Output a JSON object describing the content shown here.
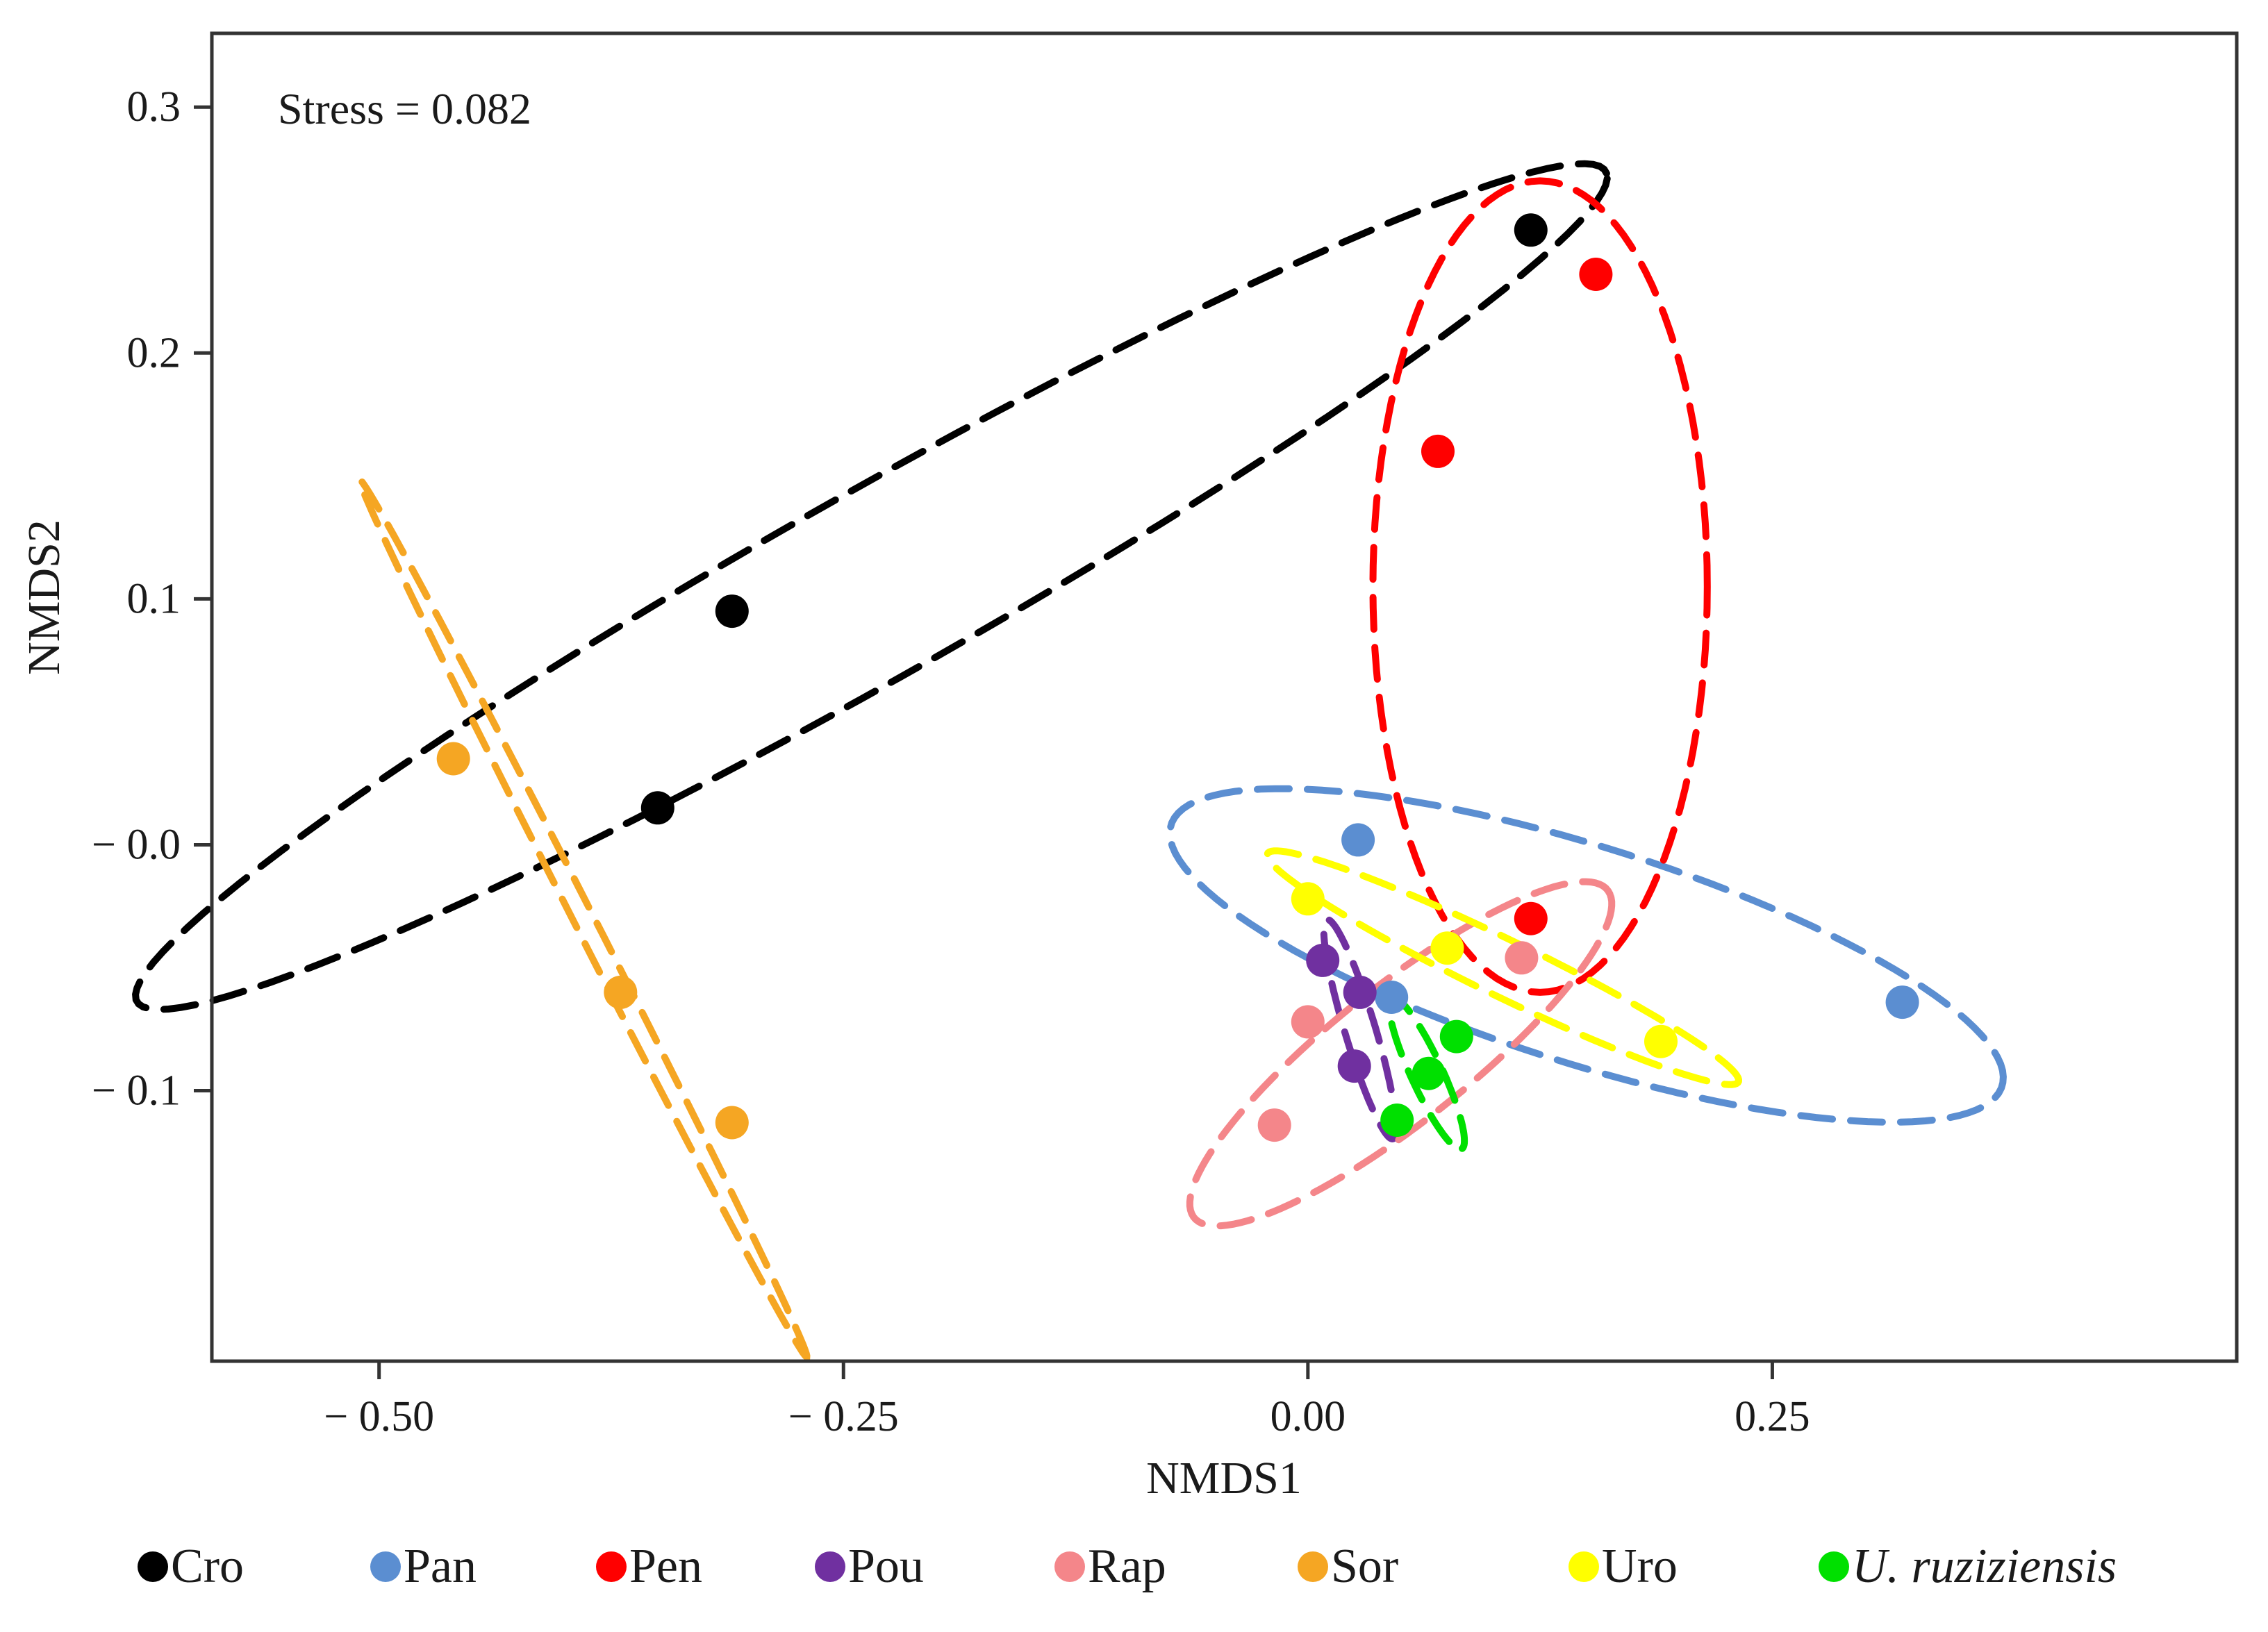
{
  "chart_data": {
    "type": "scatter",
    "title": "",
    "annotation": "Stress = 0.082",
    "xlabel": "NMDS1",
    "ylabel": "NMDS2",
    "xlim": [
      -0.59,
      0.5
    ],
    "ylim": [
      -0.21,
      0.33
    ],
    "x_ticks": [
      -0.5,
      -0.25,
      0.0,
      0.25
    ],
    "x_tick_labels": [
      "− 0.50",
      "− 0.25",
      "0.00",
      "0.25"
    ],
    "y_ticks": [
      0.3,
      0.2,
      0.1,
      0.0,
      -0.1
    ],
    "y_tick_labels": [
      "0.3",
      "0.2",
      "0.1",
      "− 0.0",
      "− 0.1"
    ],
    "grid": false,
    "legend_position": "bottom",
    "series": [
      {
        "name": "Cro",
        "italic": false,
        "color": "#000000",
        "points": [
          [
            0.12,
            0.25
          ],
          [
            -0.31,
            0.095
          ],
          [
            -0.35,
            0.015
          ]
        ],
        "ellipse": {
          "cx": -0.235,
          "cy": 0.105,
          "rx": 0.43,
          "ry": 0.04,
          "angle_deg": 23
        }
      },
      {
        "name": "Pan",
        "italic": false,
        "color": "#5b8ed1",
        "points": [
          [
            0.027,
            0.002
          ],
          [
            0.045,
            -0.062
          ],
          [
            0.32,
            -0.064
          ]
        ],
        "ellipse": {
          "cx": 0.15,
          "cy": -0.045,
          "rx": 0.23,
          "ry": 0.045,
          "angle_deg": -13
        }
      },
      {
        "name": "Pen",
        "italic": false,
        "color": "#ff0000",
        "points": [
          [
            0.155,
            0.232
          ],
          [
            0.07,
            0.16
          ],
          [
            0.12,
            -0.03
          ]
        ],
        "ellipse": {
          "cx": 0.125,
          "cy": 0.105,
          "rx": 0.09,
          "ry": 0.165,
          "angle_deg": 0
        }
      },
      {
        "name": "Pou",
        "italic": false,
        "color": "#7030a0",
        "points": [
          [
            0.008,
            -0.047
          ],
          [
            0.028,
            -0.06
          ],
          [
            0.025,
            -0.09
          ]
        ],
        "ellipse": {
          "cx": 0.028,
          "cy": -0.075,
          "rx": 0.048,
          "ry": 0.008,
          "angle_deg": -68
        }
      },
      {
        "name": "Rap",
        "italic": false,
        "color": "#f4868a",
        "points": [
          [
            0.115,
            -0.046
          ],
          [
            0.0,
            -0.072
          ],
          [
            -0.018,
            -0.114
          ]
        ],
        "ellipse": {
          "cx": 0.05,
          "cy": -0.085,
          "rx": 0.13,
          "ry": 0.03,
          "angle_deg": 30
        }
      },
      {
        "name": "Sor",
        "italic": false,
        "color": "#f5a623",
        "points": [
          [
            -0.46,
            0.035
          ],
          [
            -0.37,
            -0.06
          ],
          [
            -0.31,
            -0.113
          ]
        ],
        "ellipse": {
          "cx": -0.39,
          "cy": -0.03,
          "rx": 0.215,
          "ry": 0.005,
          "angle_deg": -56
        }
      },
      {
        "name": "Uro",
        "italic": false,
        "color": "#ffff00",
        "points": [
          [
            0.0,
            -0.022
          ],
          [
            0.075,
            -0.042
          ],
          [
            0.19,
            -0.08
          ]
        ],
        "ellipse": {
          "cx": 0.105,
          "cy": -0.05,
          "rx": 0.135,
          "ry": 0.012,
          "angle_deg": -20
        }
      },
      {
        "name": "U. ruziziensis",
        "italic": true,
        "color": "#00e000",
        "points": [
          [
            0.08,
            -0.078
          ],
          [
            0.065,
            -0.093
          ],
          [
            0.048,
            -0.112
          ]
        ],
        "ellipse": {
          "cx": 0.064,
          "cy": -0.093,
          "rx": 0.036,
          "ry": 0.008,
          "angle_deg": -58
        }
      }
    ]
  }
}
